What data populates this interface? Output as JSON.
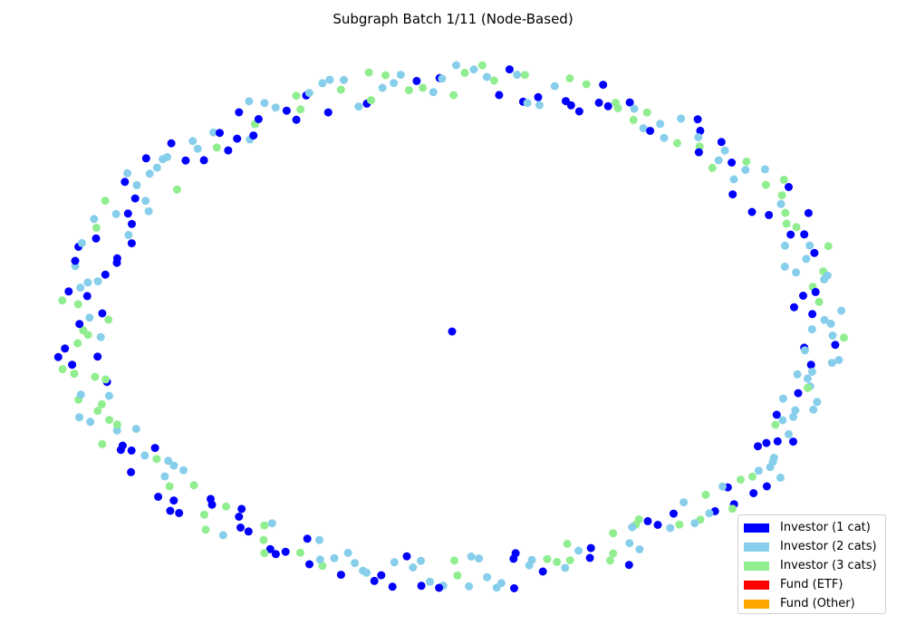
{
  "title": "Subgraph Batch 1/11 (Node-Based)",
  "legend": {
    "placement": "lower-right",
    "entries": [
      {
        "label": "Investor (1 cat)",
        "color": "#0000ff"
      },
      {
        "label": "Investor (2 cats)",
        "color": "#87ceeb"
      },
      {
        "label": "Investor (3 cats)",
        "color": "#90ee90"
      },
      {
        "label": "Fund (ETF)",
        "color": "#ff0000"
      },
      {
        "label": "Fund (Other)",
        "color": "#ffa500"
      }
    ]
  },
  "graph": {
    "layout": "ring",
    "center_node": {
      "category": "Investor (1 cat)",
      "color": "#0000ff"
    },
    "ring_nodes": {
      "total": 330,
      "pattern": [
        "#0000ff",
        "#87ceeb",
        "#90ee90",
        "#0000ff",
        "#87ceeb",
        "#90ee90",
        "#87ceeb",
        "#0000ff",
        "#90ee90",
        "#87ceeb",
        "#0000ff"
      ]
    }
  }
}
